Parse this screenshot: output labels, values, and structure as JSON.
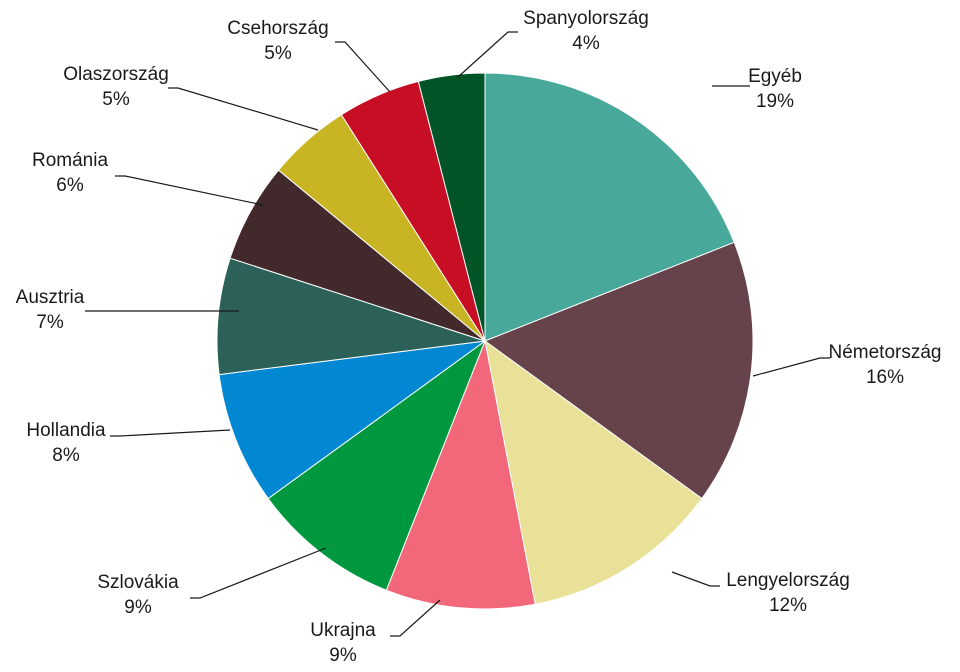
{
  "chart_data": {
    "type": "pie",
    "title": "",
    "start": "12 o'clock, clockwise",
    "slices": [
      {
        "name": "Egyéb",
        "value": 19,
        "label": "19%",
        "color": "#48a99b"
      },
      {
        "name": "Németország",
        "value": 16,
        "label": "16%",
        "color": "#66434a"
      },
      {
        "name": "Lengyelország",
        "value": 12,
        "label": "12%",
        "color": "#e9e197"
      },
      {
        "name": "Ukrajna",
        "value": 9,
        "label": "9%",
        "color": "#f2687a"
      },
      {
        "name": "Szlovákia",
        "value": 9,
        "label": "9%",
        "color": "#00983e"
      },
      {
        "name": "Hollandia",
        "value": 8,
        "label": "8%",
        "color": "#0288d2"
      },
      {
        "name": "Ausztria",
        "value": 7,
        "label": "7%",
        "color": "#2b6158"
      },
      {
        "name": "Románia",
        "value": 6,
        "label": "6%",
        "color": "#42292c"
      },
      {
        "name": "Olaszország",
        "value": 5,
        "label": "5%",
        "color": "#c9b524"
      },
      {
        "name": "Csehország",
        "value": 5,
        "label": "5%",
        "color": "#c70e24"
      },
      {
        "name": "Spanyolország",
        "value": 4,
        "label": "4%",
        "color": "#005426"
      }
    ]
  }
}
